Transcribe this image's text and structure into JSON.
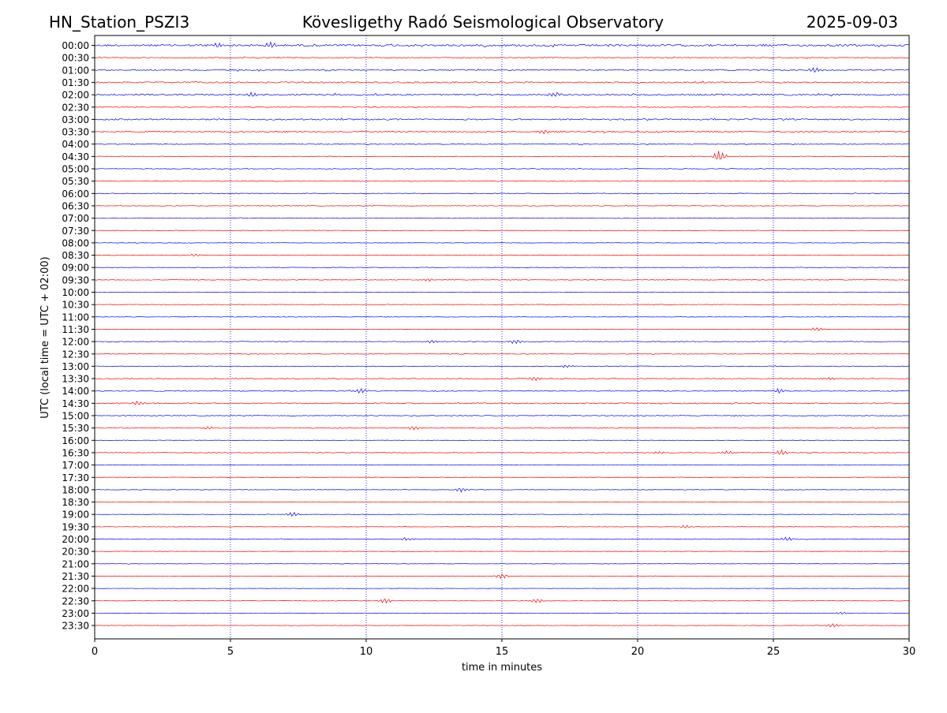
{
  "header": {
    "station": "HN_Station_PSZI3",
    "observatory": "Kövesligethy Radó Seismological Observatory",
    "date": "2025-09-03"
  },
  "chart_data": {
    "type": "line",
    "title": "Kövesligethy Radó Seismological Observatory",
    "xlabel": "time in minutes",
    "ylabel": "UTC (local time = UTC + 02:00)",
    "xlim": [
      0,
      30
    ],
    "x_ticks": [
      "0",
      "5",
      "10",
      "15",
      "20",
      "25",
      "30"
    ],
    "x_tick_values": [
      0,
      5,
      10,
      15,
      20,
      25,
      30
    ],
    "grid": "vertical dotted at 5-minute ticks",
    "colors": {
      "hour_trace": "#0000ff",
      "half_hour_trace": "#ff0000",
      "grid": "#0000cc"
    },
    "rows": [
      "00:00",
      "00:30",
      "01:00",
      "01:30",
      "02:00",
      "02:30",
      "03:00",
      "03:30",
      "04:00",
      "04:30",
      "05:00",
      "05:30",
      "06:00",
      "06:30",
      "07:00",
      "07:30",
      "08:00",
      "08:30",
      "09:00",
      "09:30",
      "10:00",
      "10:30",
      "11:00",
      "11:30",
      "12:00",
      "12:30",
      "13:00",
      "13:30",
      "14:00",
      "14:30",
      "15:00",
      "15:30",
      "16:00",
      "16:30",
      "17:00",
      "17:30",
      "18:00",
      "18:30",
      "19:00",
      "19:30",
      "20:00",
      "20:30",
      "21:00",
      "21:30",
      "22:00",
      "22:30",
      "23:00",
      "23:30"
    ],
    "noise_level": [
      2.6,
      1.2,
      1.6,
      1.8,
      2.0,
      1.2,
      1.8,
      1.8,
      1.2,
      0.8,
      1.0,
      1.0,
      1.0,
      0.8,
      0.8,
      0.6,
      0.6,
      0.7,
      0.8,
      0.8,
      0.7,
      0.6,
      0.6,
      0.6,
      0.9,
      0.9,
      1.0,
      1.0,
      1.3,
      1.4,
      1.0,
      1.0,
      0.6,
      0.9,
      0.5,
      0.6,
      0.7,
      0.6,
      0.6,
      0.6,
      0.9,
      0.6,
      0.5,
      0.5,
      0.4,
      0.6,
      0.5,
      0.5
    ],
    "events": [
      {
        "row": "00:00",
        "t": 4.5,
        "amp": 2.0
      },
      {
        "row": "00:00",
        "t": 6.5,
        "amp": 2.5
      },
      {
        "row": "01:00",
        "t": 26.5,
        "amp": 2.2
      },
      {
        "row": "02:00",
        "t": 5.8,
        "amp": 2.0
      },
      {
        "row": "02:00",
        "t": 17.0,
        "amp": 2.0
      },
      {
        "row": "03:30",
        "t": 16.5,
        "amp": 2.0
      },
      {
        "row": "04:30",
        "t": 23.0,
        "amp": 5.0
      },
      {
        "row": "08:30",
        "t": 3.7,
        "amp": 1.2
      },
      {
        "row": "09:30",
        "t": 12.3,
        "amp": 1.2
      },
      {
        "row": "11:30",
        "t": 26.6,
        "amp": 1.8
      },
      {
        "row": "12:00",
        "t": 15.5,
        "amp": 2.0
      },
      {
        "row": "12:00",
        "t": 12.4,
        "amp": 1.5
      },
      {
        "row": "13:00",
        "t": 17.4,
        "amp": 1.5
      },
      {
        "row": "13:30",
        "t": 16.2,
        "amp": 2.0
      },
      {
        "row": "13:30",
        "t": 27.1,
        "amp": 1.5
      },
      {
        "row": "14:00",
        "t": 9.8,
        "amp": 2.5
      },
      {
        "row": "14:00",
        "t": 25.2,
        "amp": 2.0
      },
      {
        "row": "14:30",
        "t": 1.6,
        "amp": 2.0
      },
      {
        "row": "15:30",
        "t": 11.8,
        "amp": 2.0
      },
      {
        "row": "15:30",
        "t": 4.2,
        "amp": 1.5
      },
      {
        "row": "16:30",
        "t": 25.3,
        "amp": 2.5
      },
      {
        "row": "16:30",
        "t": 23.3,
        "amp": 1.5
      },
      {
        "row": "16:30",
        "t": 20.8,
        "amp": 1.2
      },
      {
        "row": "18:00",
        "t": 13.5,
        "amp": 2.0
      },
      {
        "row": "19:00",
        "t": 7.3,
        "amp": 2.0
      },
      {
        "row": "19:30",
        "t": 21.8,
        "amp": 1.5
      },
      {
        "row": "20:00",
        "t": 11.5,
        "amp": 1.5
      },
      {
        "row": "20:00",
        "t": 25.5,
        "amp": 1.8
      },
      {
        "row": "21:30",
        "t": 15.0,
        "amp": 2.5
      },
      {
        "row": "22:30",
        "t": 10.7,
        "amp": 2.5
      },
      {
        "row": "22:30",
        "t": 16.3,
        "amp": 2.0
      },
      {
        "row": "23:00",
        "t": 27.5,
        "amp": 1.2
      },
      {
        "row": "23:30",
        "t": 27.2,
        "amp": 1.8
      }
    ]
  }
}
